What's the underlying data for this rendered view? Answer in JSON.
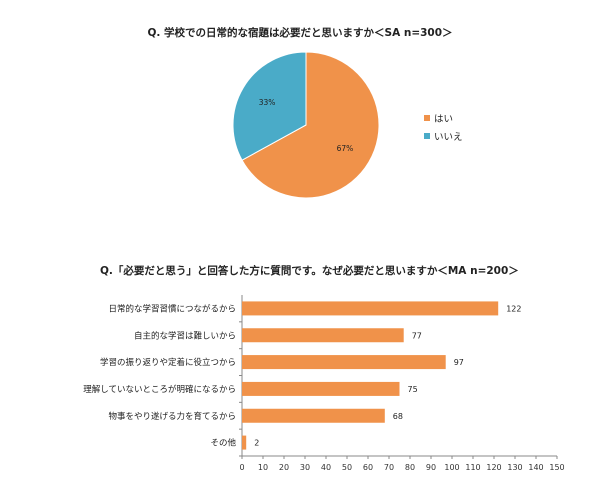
{
  "chart_data": [
    {
      "type": "pie",
      "title": "Q. 学校での日常的な宿題は必要だと思いますか＜SA n=300＞",
      "slices": [
        {
          "label": "はい",
          "value": 67,
          "value_label": "67%",
          "color": "#f0924a"
        },
        {
          "label": "いいえ",
          "value": 33,
          "value_label": "33%",
          "color": "#4aabc8"
        }
      ],
      "legend": "right"
    },
    {
      "type": "bar",
      "orientation": "horizontal",
      "title": "Q.「必要だと思う」と回答した方に質問です。なぜ必要だと思いますか＜MA n=200＞",
      "categories": [
        "日常的な学習習慣につながるから",
        "自主的な学習は難しいから",
        "学習の振り返りや定着に役立つから",
        "理解していないところが明確になるから",
        "物事をやり遂げる力を育てるから",
        "その他"
      ],
      "values": [
        122,
        77,
        97,
        75,
        68,
        2
      ],
      "xlim": [
        0,
        150
      ],
      "xticks": [
        0,
        10,
        20,
        30,
        40,
        50,
        60,
        70,
        80,
        90,
        100,
        110,
        120,
        130,
        140,
        150
      ],
      "bar_color": "#f0924a",
      "grid": false
    }
  ]
}
